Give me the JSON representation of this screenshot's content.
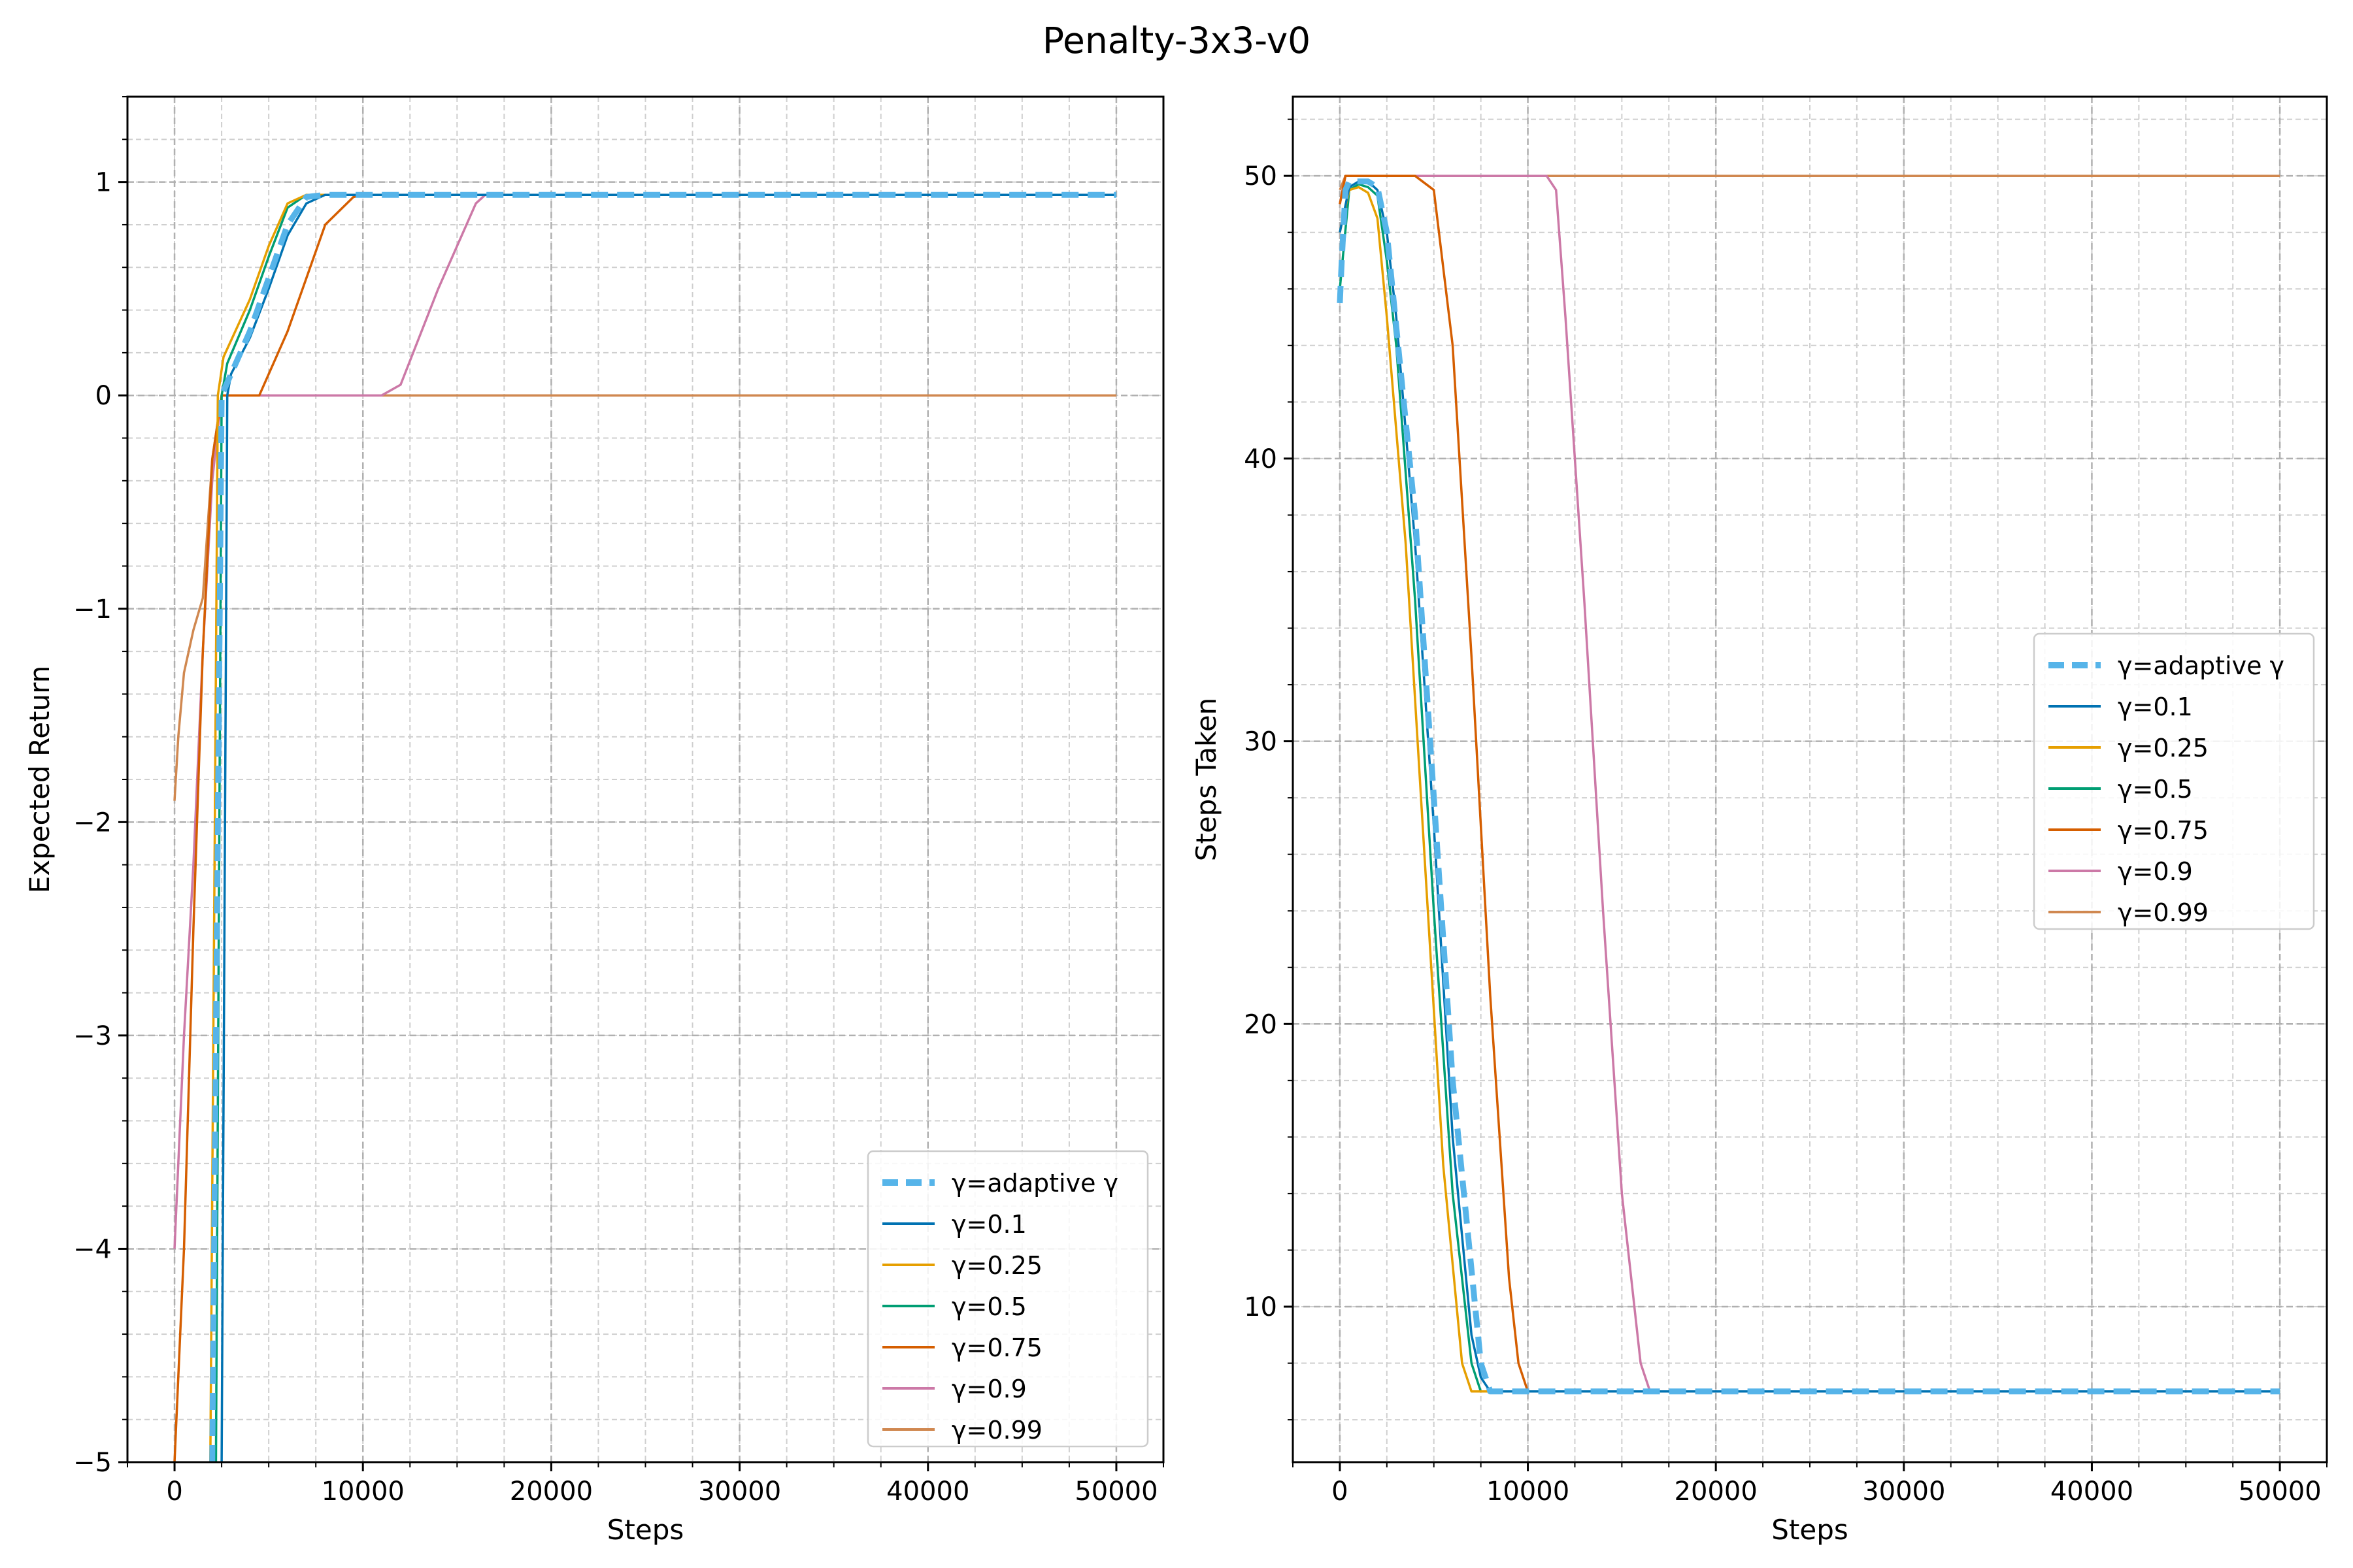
{
  "figure": {
    "title": "Penalty-3x3-v0"
  },
  "legend_entries": [
    "γ=adaptive γ",
    "γ=0.1",
    "γ=0.25",
    "γ=0.5",
    "γ=0.75",
    "γ=0.9",
    "γ=0.99"
  ],
  "colors": {
    "adaptive": "#56b4e9",
    "g0.1": "#0072b2",
    "g0.25": "#e69f00",
    "g0.5": "#009e73",
    "g0.75": "#d55e00",
    "g0.9": "#cc79a7",
    "g0.99": "#d08850"
  },
  "chart_data": [
    {
      "type": "line",
      "xlabel": "Steps",
      "ylabel": "Expected Return",
      "xlim": [
        -2500,
        52500
      ],
      "ylim": [
        -5,
        1.4
      ],
      "xticks": [
        0,
        10000,
        20000,
        30000,
        40000,
        50000
      ],
      "yticks": [
        -5,
        -4,
        -3,
        -2,
        -1,
        0,
        1
      ],
      "grid": true,
      "legend_position": "lower right",
      "series": [
        {
          "name": "γ=adaptive γ",
          "style": "dashed",
          "x": [
            2000,
            2500,
            3000,
            4000,
            5000,
            6000,
            7000,
            8000,
            10000,
            50000
          ],
          "y": [
            -5,
            0,
            0.1,
            0.3,
            0.55,
            0.8,
            0.93,
            0.94,
            0.94,
            0.94
          ]
        },
        {
          "name": "γ=0.1",
          "x": [
            2500,
            2800,
            3000,
            4000,
            5000,
            6000,
            7000,
            8000,
            10000,
            50000
          ],
          "y": [
            -5,
            0,
            0.1,
            0.27,
            0.5,
            0.75,
            0.9,
            0.94,
            0.94,
            0.94
          ]
        },
        {
          "name": "γ=0.25",
          "x": [
            1900,
            2300,
            2600,
            4000,
            5000,
            6000,
            7000,
            8000,
            50000
          ],
          "y": [
            -5,
            0,
            0.18,
            0.45,
            0.7,
            0.9,
            0.94,
            0.94,
            0.94
          ]
        },
        {
          "name": "γ=0.5",
          "x": [
            2200,
            2500,
            2800,
            4000,
            5000,
            6000,
            7000,
            8000,
            50000
          ],
          "y": [
            -5,
            0,
            0.15,
            0.4,
            0.65,
            0.88,
            0.94,
            0.94,
            0.94
          ]
        },
        {
          "name": "γ=0.75",
          "x": [
            0,
            500,
            1000,
            1500,
            2000,
            2500,
            4500,
            6000,
            8000,
            9500,
            10000,
            50000
          ],
          "y": [
            -5,
            -4,
            -2.5,
            -1.2,
            -0.3,
            0,
            0,
            0.3,
            0.8,
            0.93,
            0.94,
            0.94
          ]
        },
        {
          "name": "γ=0.9",
          "x": [
            0,
            500,
            1000,
            1500,
            2000,
            2500,
            11000,
            12000,
            14000,
            16000,
            16500,
            50000
          ],
          "y": [
            -4,
            -3,
            -2.2,
            -1.2,
            -0.4,
            0,
            0,
            0.05,
            0.5,
            0.9,
            0.94,
            0.94
          ]
        },
        {
          "name": "γ=0.99",
          "x": [
            0,
            200,
            500,
            1000,
            1500,
            2000,
            2500,
            50000
          ],
          "y": [
            -1.9,
            -1.6,
            -1.3,
            -1.1,
            -0.95,
            -0.3,
            0,
            0
          ]
        }
      ]
    },
    {
      "type": "line",
      "xlabel": "Steps",
      "ylabel": "Steps Taken",
      "xlim": [
        -2500,
        52500
      ],
      "ylim": [
        4.5,
        52.8
      ],
      "xticks": [
        0,
        10000,
        20000,
        30000,
        40000,
        50000
      ],
      "yticks": [
        10,
        20,
        30,
        40,
        50
      ],
      "grid": true,
      "legend_position": "center right",
      "series": [
        {
          "name": "γ=adaptive γ",
          "style": "dashed",
          "x": [
            0,
            100,
            300,
            500,
            1000,
            1500,
            2000,
            2500,
            4000,
            6000,
            7500,
            8000,
            10000,
            50000
          ],
          "y": [
            45.5,
            47,
            49.5,
            49.8,
            49.8,
            49.8,
            49.6,
            48,
            38,
            18,
            8,
            7,
            7,
            7
          ]
        },
        {
          "name": "γ=0.1",
          "x": [
            0,
            500,
            1000,
            1500,
            2000,
            2500,
            3000,
            4000,
            5000,
            6000,
            7000,
            7500,
            8000,
            50000
          ],
          "y": [
            48,
            49.6,
            49.8,
            49.8,
            49.5,
            48,
            45,
            37,
            27,
            16,
            9,
            7.5,
            7,
            7
          ]
        },
        {
          "name": "γ=0.25",
          "x": [
            0,
            500,
            1000,
            1500,
            2000,
            2500,
            3500,
            4500,
            5500,
            6500,
            7000,
            50000
          ],
          "y": [
            48,
            49.5,
            49.6,
            49.4,
            48.5,
            45,
            37,
            26,
            15,
            8,
            7,
            7
          ]
        },
        {
          "name": "γ=0.5",
          "x": [
            0,
            500,
            1000,
            1500,
            2000,
            2500,
            3000,
            4000,
            5000,
            6000,
            7000,
            7500,
            50000
          ],
          "y": [
            46,
            49.5,
            49.7,
            49.6,
            49.3,
            47,
            44,
            35,
            24,
            14,
            8,
            7,
            7
          ]
        },
        {
          "name": "γ=0.75",
          "x": [
            0,
            300,
            500,
            4000,
            5000,
            6000,
            7000,
            8000,
            9000,
            9500,
            10000,
            50000
          ],
          "y": [
            49,
            50,
            50,
            50,
            49.5,
            44,
            33,
            21,
            11,
            8,
            7,
            7
          ]
        },
        {
          "name": "γ=0.9",
          "x": [
            0,
            300,
            500,
            11000,
            11500,
            12000,
            13000,
            14000,
            15000,
            16000,
            16500,
            50000
          ],
          "y": [
            49,
            50,
            50,
            50,
            49.5,
            45,
            35,
            24,
            14,
            8,
            7,
            7
          ]
        },
        {
          "name": "γ=0.99",
          "x": [
            0,
            300,
            500,
            50000
          ],
          "y": [
            49.5,
            50,
            50,
            50
          ]
        }
      ]
    }
  ]
}
